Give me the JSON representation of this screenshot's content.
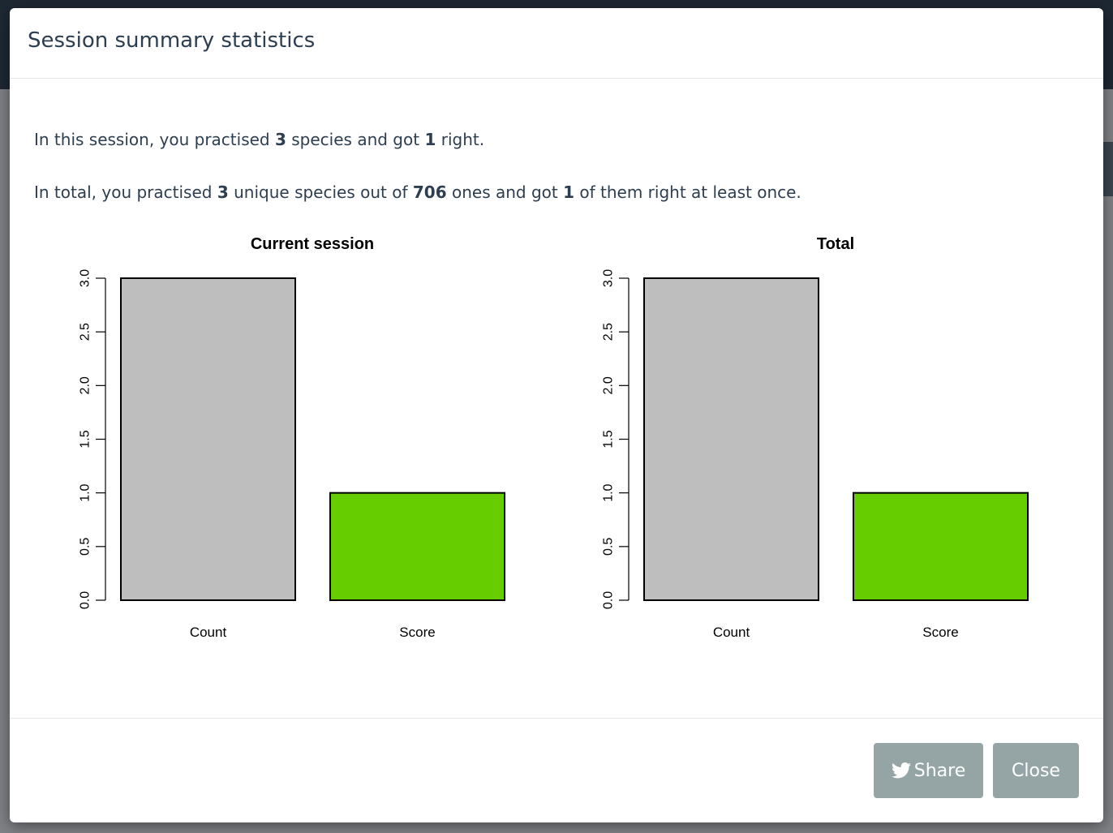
{
  "modal": {
    "title": "Session summary statistics",
    "session_text": {
      "p1": "In this session, you practised ",
      "species_count": "3",
      "p2": " species and got ",
      "right_count": "1",
      "p3": " right."
    },
    "total_text": {
      "p1": "In total, you practised ",
      "unique_count": "3",
      "p2": " unique species out of ",
      "total_species": "706",
      "p3": " ones and got ",
      "right_count": "1",
      "p4": " of them right at least once."
    },
    "buttons": {
      "share_label": "Share",
      "share_icon": "twitter-icon",
      "close_label": "Close"
    }
  },
  "colors": {
    "count_bar": "#bebebe",
    "score_bar": "#66cd00",
    "button": "#95a5a6",
    "title_text": "#2c3e50"
  },
  "chart_data": [
    {
      "type": "bar",
      "title": "Current session",
      "categories": [
        "Count",
        "Score"
      ],
      "values": [
        3,
        1
      ],
      "colors": [
        "#bebebe",
        "#66cd00"
      ],
      "ylim": [
        0,
        3
      ],
      "yticks": [
        "0.0",
        "0.5",
        "1.0",
        "1.5",
        "2.0",
        "2.5",
        "3.0"
      ],
      "xlabel": "",
      "ylabel": ""
    },
    {
      "type": "bar",
      "title": "Total",
      "categories": [
        "Count",
        "Score"
      ],
      "values": [
        3,
        1
      ],
      "colors": [
        "#bebebe",
        "#66cd00"
      ],
      "ylim": [
        0,
        3
      ],
      "yticks": [
        "0.0",
        "0.5",
        "1.0",
        "1.5",
        "2.0",
        "2.5",
        "3.0"
      ],
      "xlabel": "",
      "ylabel": ""
    }
  ]
}
